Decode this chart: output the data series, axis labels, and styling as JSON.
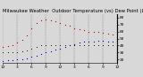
{
  "title": "Milwaukee Weather  Outdoor Temperature (vs) Dew Point (Last 24 Hours)",
  "bg_color": "#d8d8d8",
  "plot_bg": "#d8d8d8",
  "temp_color": "#cc0000",
  "dew_color": "#0000cc",
  "third_color": "#000000",
  "ylim": [
    15,
    85
  ],
  "xlim": [
    0,
    24
  ],
  "y_ticks_right": [
    80,
    70,
    60,
    50,
    40,
    30,
    20
  ],
  "ylabel_right": [
    "80",
    "70",
    "60",
    "50",
    "40",
    "30",
    "20"
  ],
  "temp_x": [
    0,
    1,
    2,
    3,
    4,
    5,
    6,
    7,
    8,
    9,
    10,
    11,
    12,
    13,
    14,
    15,
    16,
    17,
    18,
    19,
    20,
    21,
    22,
    23
  ],
  "temp_y": [
    38,
    39,
    40,
    44,
    48,
    55,
    65,
    72,
    76,
    77,
    76,
    74,
    72,
    70,
    68,
    65,
    63,
    62,
    60,
    60,
    59,
    58,
    57,
    56
  ],
  "dew_x": [
    0,
    1,
    2,
    3,
    4,
    5,
    6,
    7,
    8,
    9,
    10,
    11,
    12,
    13,
    14,
    15,
    16,
    17,
    18,
    19,
    20,
    21,
    22,
    23
  ],
  "dew_y": [
    18,
    19,
    19,
    20,
    21,
    22,
    24,
    26,
    28,
    30,
    32,
    34,
    36,
    38,
    40,
    42,
    44,
    45,
    46,
    46,
    47,
    47,
    46,
    46
  ],
  "third_x": [
    0,
    1,
    2,
    3,
    4,
    5,
    6,
    7,
    8,
    9,
    10,
    11,
    12,
    13,
    14,
    15,
    16,
    17,
    18,
    19,
    20,
    21,
    22,
    23
  ],
  "third_y": [
    30,
    30,
    30,
    31,
    32,
    33,
    36,
    38,
    40,
    41,
    41,
    41,
    41,
    41,
    41,
    41,
    41,
    41,
    41,
    41,
    41,
    41,
    41,
    41
  ],
  "vlines_x": [
    0,
    3,
    6,
    9,
    12,
    15,
    18,
    21,
    24
  ],
  "x_labels": [
    "12",
    "3",
    "6",
    "9",
    "12",
    "3",
    "6",
    "9",
    "12"
  ],
  "markersize": 1.8,
  "title_fontsize": 3.8,
  "tick_fontsize": 3.2
}
